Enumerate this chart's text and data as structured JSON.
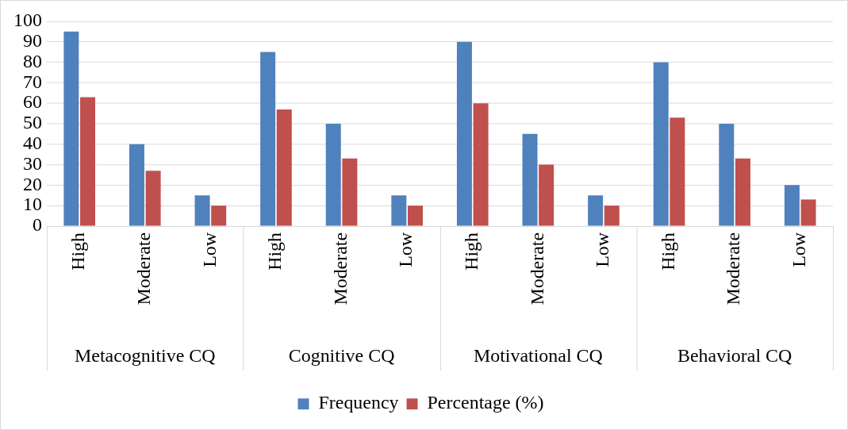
{
  "chart_data": {
    "type": "bar",
    "categories": [
      "High",
      "Moderate",
      "Low",
      "High",
      "Moderate",
      "Low",
      "High",
      "Moderate",
      "Low",
      "High",
      "Moderate",
      "Low"
    ],
    "series": [
      {
        "name": "Frequency",
        "color": "#4f81bd",
        "values": [
          95,
          40,
          15,
          85,
          50,
          15,
          90,
          45,
          15,
          80,
          50,
          20
        ]
      },
      {
        "name": "Percentage (%)",
        "color": "#c0504d",
        "values": [
          63,
          27,
          10,
          57,
          33,
          10,
          60,
          30,
          10,
          53,
          33,
          13
        ]
      }
    ],
    "annotations": [
      "Metacognitive CQ",
      "Cognitive CQ",
      "Motivational CQ",
      "Behavioral CQ"
    ],
    "ylim": [
      0,
      100
    ],
    "yticks": [
      0,
      10,
      20,
      30,
      40,
      50,
      60,
      70,
      80,
      90,
      100
    ],
    "grid": "y",
    "legend": "bottom"
  }
}
